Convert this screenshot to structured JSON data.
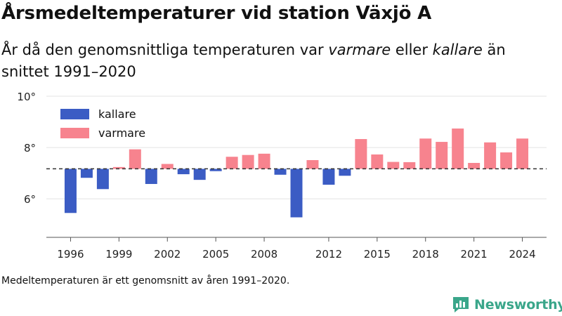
{
  "header": {
    "title": "Årsmedeltemperaturer vid station Växjö A",
    "subtitle_parts": [
      "År då den genomsnittliga temperaturen var ",
      "varmare",
      " eller ",
      "kallare",
      " än snittet 1991–2020"
    ]
  },
  "footer": {
    "note": "Medeltemperaturen är ett genomsnitt av åren 1991–2020.",
    "brand": "Newsworthy"
  },
  "colors": {
    "colder": "#3b5cc4",
    "warmer": "#f7838e",
    "logo": "#3aa68a"
  },
  "chart_data": {
    "type": "bar",
    "baseline": 7.17,
    "baseline_style": "dashed",
    "ylim": [
      4.5,
      10
    ],
    "yticks": [
      6,
      8,
      10
    ],
    "ytick_labels": [
      "6°",
      "8°",
      "10°"
    ],
    "xlim": [
      1994.5,
      2025.5
    ],
    "xticks": [
      1996,
      1999,
      2002,
      2005,
      2008,
      2012,
      2015,
      2018,
      2021,
      2024
    ],
    "xtick_labels": [
      "1996",
      "1999",
      "2002",
      "2005",
      "2008",
      "2012",
      "2015",
      "2018",
      "2021",
      "2024"
    ],
    "legend": {
      "placement": "top-left",
      "entries": [
        {
          "key": "colder",
          "label": "kallare"
        },
        {
          "key": "warmer",
          "label": "varmare"
        }
      ]
    },
    "categories": [
      1996,
      1997,
      1998,
      1999,
      2000,
      2001,
      2002,
      2003,
      2004,
      2005,
      2006,
      2007,
      2008,
      2009,
      2010,
      2011,
      2012,
      2013,
      2014,
      2015,
      2016,
      2017,
      2018,
      2019,
      2020,
      2021,
      2022,
      2023,
      2024
    ],
    "values": [
      5.45,
      6.82,
      6.38,
      7.24,
      7.93,
      6.58,
      7.36,
      6.96,
      6.74,
      7.08,
      7.64,
      7.71,
      7.76,
      6.94,
      5.28,
      7.51,
      6.55,
      6.9,
      8.33,
      7.73,
      7.44,
      7.43,
      8.35,
      8.22,
      8.74,
      7.4,
      8.2,
      7.81,
      8.35
    ]
  }
}
